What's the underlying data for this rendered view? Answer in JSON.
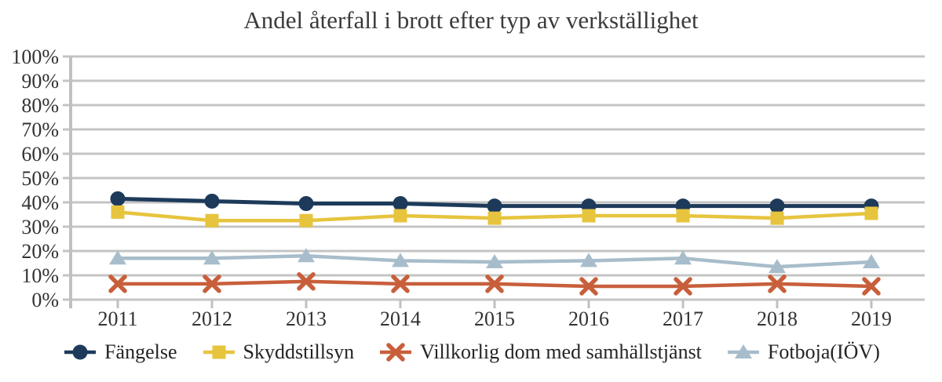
{
  "title": "Andel återfall i brott efter typ av verkställighet",
  "colors": {
    "grid": "#c4c4c4",
    "axis": "#c0c0c0",
    "title_text": "#3b3b3b",
    "tick_text": "#333333",
    "legend_text": "#242424",
    "background": "#ffffff"
  },
  "chart_data": {
    "type": "line",
    "title": "Andel återfall i brott efter typ av verkställighet",
    "xlabel": "",
    "ylabel": "",
    "ylim": [
      0,
      100
    ],
    "grid": true,
    "legend_position": "bottom",
    "x_tick_labels": [
      "2011",
      "2012",
      "2013",
      "2014",
      "2015",
      "2016",
      "2017",
      "2018",
      "2019"
    ],
    "y_tick_values": [
      0,
      10,
      20,
      30,
      40,
      50,
      60,
      70,
      80,
      90,
      100
    ],
    "y_tick_labels": [
      "0%",
      "10%",
      "20%",
      "30%",
      "40%",
      "50%",
      "60%",
      "70%",
      "80%",
      "90%",
      "100%"
    ],
    "series": [
      {
        "id": "fangelse",
        "name": "Fängelse",
        "marker": "circle",
        "color": "#1d3a5a",
        "values": [
          41.5,
          40.5,
          39.5,
          39.5,
          38.5,
          38.5,
          38.5,
          38.5,
          38.5
        ]
      },
      {
        "id": "skyddstillsyn",
        "name": "Skyddstillsyn",
        "marker": "square",
        "color": "#e7c43e",
        "values": [
          36,
          32.5,
          32.5,
          34.5,
          33.5,
          34.5,
          34.5,
          33.5,
          35.5
        ]
      },
      {
        "id": "villkorlig-dom-med-samhallstjanst",
        "name": "Villkorlig dom med samhällstjänst",
        "marker": "x",
        "color": "#c85f3b",
        "values": [
          6.5,
          6.5,
          7.5,
          6.5,
          6.5,
          5.5,
          5.5,
          6.5,
          5.5
        ]
      },
      {
        "id": "fotboja-iov",
        "name": "Fotboja(IÖV)",
        "marker": "triangle",
        "color": "#a8bdcb",
        "values": [
          17,
          17,
          18,
          16,
          15.5,
          16,
          17,
          13.5,
          15.5
        ]
      }
    ]
  }
}
